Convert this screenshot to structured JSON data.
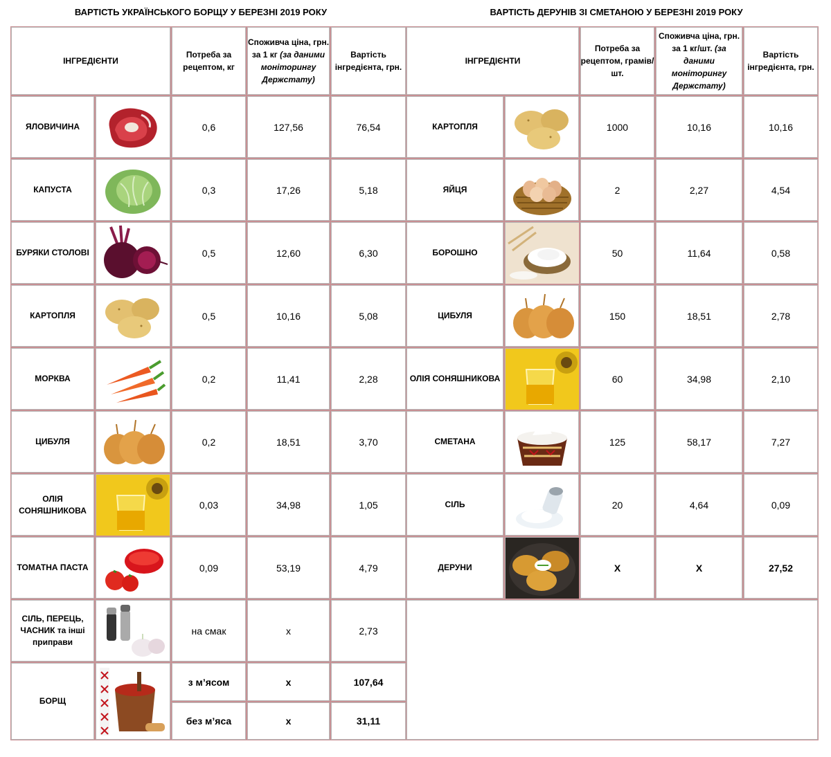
{
  "titles": {
    "left": "ВАРТІСТЬ УКРАЇНСЬКОГО БОРЩУ У БЕРЕЗНІ  2019 РОКУ",
    "right": "ВАРТІСТЬ ДЕРУНІВ ЗІ СМЕТАНОЮ У БЕРЕЗНІ 2019 РОКУ"
  },
  "borsch": {
    "headers": {
      "ingredients": "ІНГРЕДІЄНТИ",
      "need": "Потреба за рецептом, кг",
      "price": "Споживча ціна, грн. за 1 кг",
      "price_note": "(за даними моніторингу Держстату)",
      "cost": "Вартість інгредієнта, грн."
    },
    "rows": [
      {
        "name": "ЯЛОВИЧИНА",
        "icon": "beef-icon",
        "need": "0,6",
        "price": "127,56",
        "cost": "76,54"
      },
      {
        "name": "КАПУСТА",
        "icon": "cabbage-icon",
        "need": "0,3",
        "price": "17,26",
        "cost": "5,18"
      },
      {
        "name": "БУРЯКИ СТОЛОВІ",
        "icon": "beet-icon",
        "need": "0,5",
        "price": "12,60",
        "cost": "6,30"
      },
      {
        "name": "КАРТОПЛЯ",
        "icon": "potato-icon",
        "need": "0,5",
        "price": "10,16",
        "cost": "5,08"
      },
      {
        "name": "МОРКВА",
        "icon": "carrot-icon",
        "need": "0,2",
        "price": "11,41",
        "cost": "2,28"
      },
      {
        "name": "ЦИБУЛЯ",
        "icon": "onion-icon",
        "need": "0,2",
        "price": "18,51",
        "cost": "3,70"
      },
      {
        "name": "ОЛІЯ СОНЯШНИКОВА",
        "icon": "sunflower-oil-icon",
        "need": "0,03",
        "price": "34,98",
        "cost": "1,05"
      },
      {
        "name": "ТОМАТНА ПАСТА",
        "icon": "tomato-paste-icon",
        "need": "0,09",
        "price": "53,19",
        "cost": "4,79"
      },
      {
        "name": "СІЛЬ, ПЕРЕЦЬ, ЧАСНИК та інші приправи",
        "icon": "spices-icon",
        "need": "на смак",
        "price": "х",
        "cost": "2,73"
      }
    ],
    "total": {
      "name": "БОРЩ",
      "icon": "borsch-pot-icon",
      "with_meat_label": "з м’ясом",
      "with_meat_price": "х",
      "with_meat_cost": "107,64",
      "without_meat_label": "без м’яса",
      "without_meat_price": "х",
      "without_meat_cost": "31,11"
    }
  },
  "deruny": {
    "headers": {
      "ingredients": "ІНГРЕДІЄНТИ",
      "need": "Потреба за рецептом, грамів/шт.",
      "price": "Споживча ціна, грн. за 1 кг/шт.",
      "price_note": "(за даними моніторингу Держстату)",
      "cost": "Вартість інгредієнта, грн."
    },
    "rows": [
      {
        "name": "КАРТОПЛЯ",
        "icon": "potato-icon",
        "need": "1000",
        "price": "10,16",
        "cost": "10,16"
      },
      {
        "name": "ЯЙЦЯ",
        "icon": "eggs-basket-icon",
        "need": "2",
        "price": "2,27",
        "cost": "4,54"
      },
      {
        "name": "БОРОШНО",
        "icon": "flour-icon",
        "need": "50",
        "price": "11,64",
        "cost": "0,58"
      },
      {
        "name": "ЦИБУЛЯ",
        "icon": "onion-icon",
        "need": "150",
        "price": "18,51",
        "cost": "2,78"
      },
      {
        "name": "ОЛІЯ СОНЯШНИКОВА",
        "icon": "sunflower-oil-icon",
        "need": "60",
        "price": "34,98",
        "cost": "2,10"
      },
      {
        "name": "СМЕТАНА",
        "icon": "sour-cream-icon",
        "need": "125",
        "price": "58,17",
        "cost": "7,27"
      },
      {
        "name": "СІЛЬ",
        "icon": "salt-icon",
        "need": "20",
        "price": "4,64",
        "cost": "0,09"
      }
    ],
    "total": {
      "name": "ДЕРУНИ",
      "icon": "deruny-pan-icon",
      "need": "Х",
      "price": "Х",
      "cost": "27,52"
    }
  }
}
